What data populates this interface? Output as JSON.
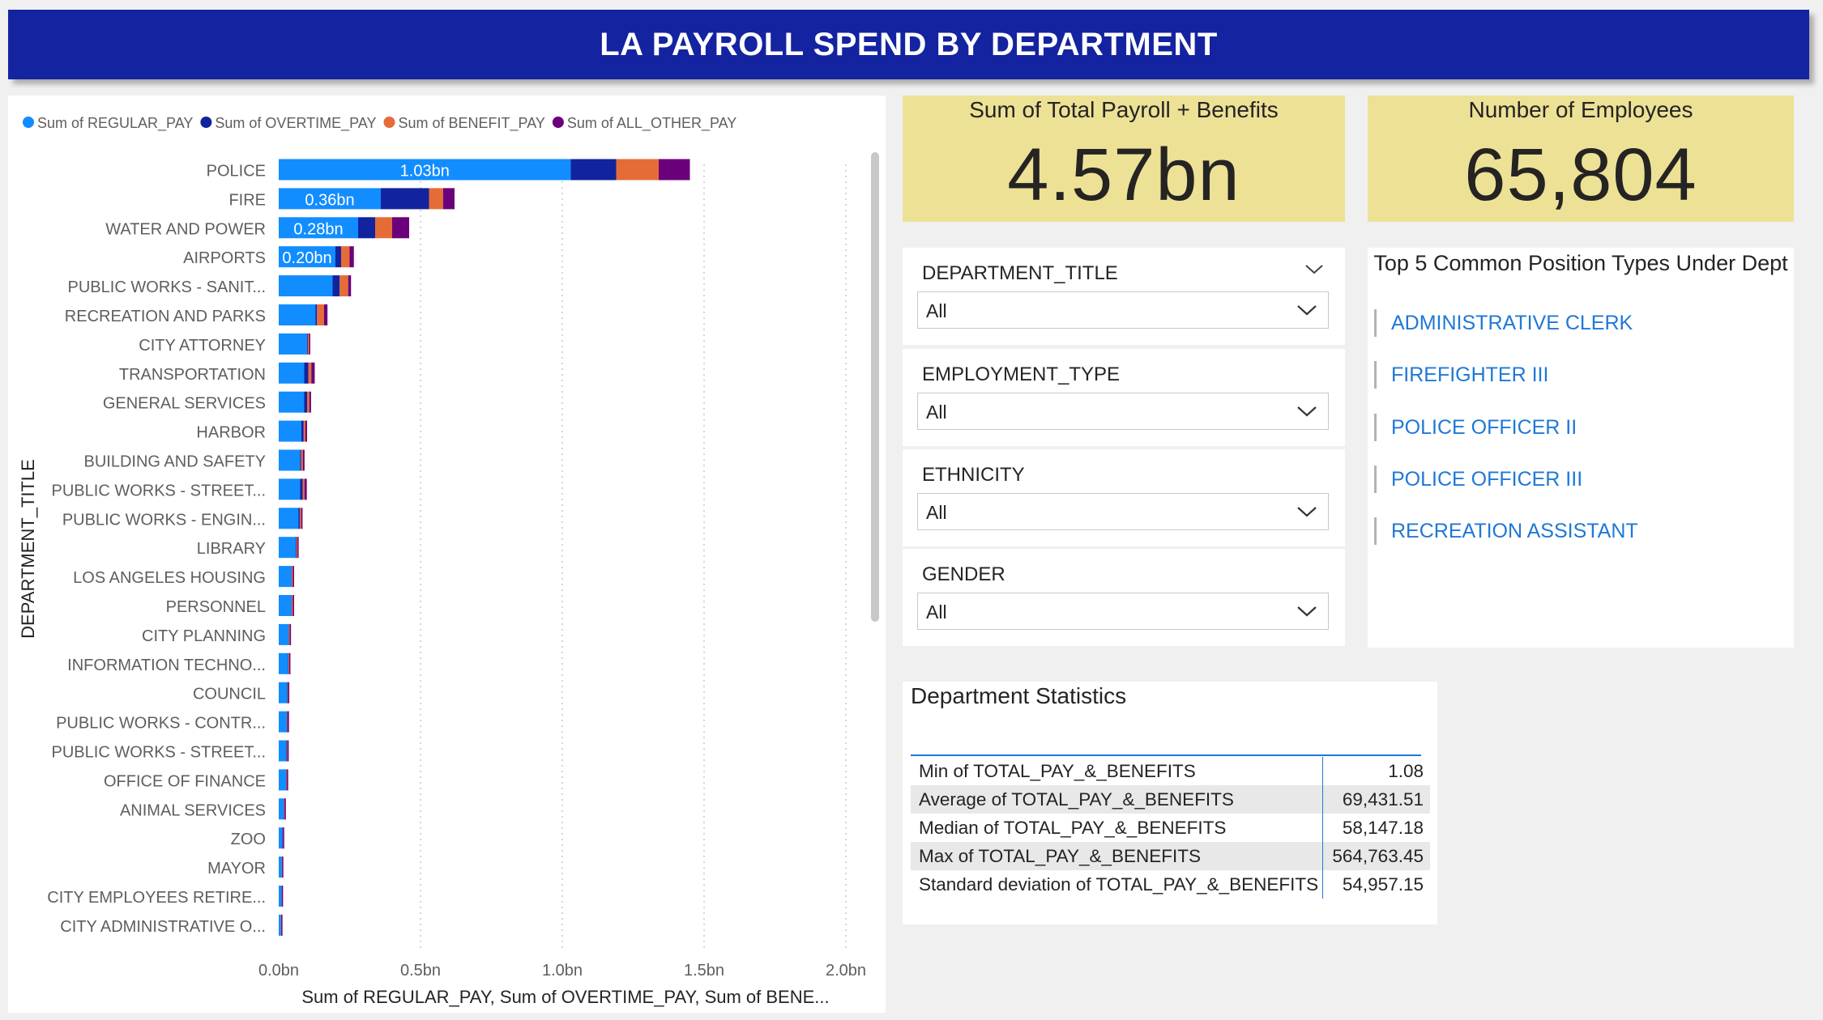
{
  "header": {
    "title": "LA PAYROLL SPEND BY DEPARTMENT"
  },
  "chart_data": {
    "type": "bar",
    "orientation": "horizontal",
    "stacked": true,
    "title": "",
    "xlabel": "Sum of REGULAR_PAY, Sum of OVERTIME_PAY, Sum of BENE...",
    "ylabel": "DEPARTMENT_TITLE",
    "xlim": [
      0,
      2.0
    ],
    "xticks": [
      0,
      0.5,
      1.0,
      1.5,
      2.0
    ],
    "xtick_labels": [
      "0.0bn",
      "0.5bn",
      "1.0bn",
      "1.5bn",
      "2.0bn"
    ],
    "grid": true,
    "legend_position": "top-left",
    "categories": [
      "POLICE",
      "FIRE",
      "WATER AND POWER",
      "AIRPORTS",
      "PUBLIC WORKS - SANIT...",
      "RECREATION AND PARKS",
      "CITY ATTORNEY",
      "TRANSPORTATION",
      "GENERAL SERVICES",
      "HARBOR",
      "BUILDING AND SAFETY",
      "PUBLIC WORKS - STREET...",
      "PUBLIC WORKS - ENGIN...",
      "LIBRARY",
      "LOS ANGELES HOUSING",
      "PERSONNEL",
      "CITY PLANNING",
      "INFORMATION TECHNO...",
      "COUNCIL",
      "PUBLIC WORKS - CONTR...",
      "PUBLIC WORKS - STREET...",
      "OFFICE OF FINANCE",
      "ANIMAL SERVICES",
      "ZOO",
      "MAYOR",
      "CITY EMPLOYEES RETIRE...",
      "CITY ADMINISTRATIVE O..."
    ],
    "series": [
      {
        "name": "Sum of REGULAR_PAY",
        "color": "#118dff",
        "values": [
          1.03,
          0.36,
          0.28,
          0.2,
          0.19,
          0.13,
          0.1,
          0.09,
          0.09,
          0.08,
          0.075,
          0.075,
          0.07,
          0.06,
          0.045,
          0.045,
          0.035,
          0.033,
          0.03,
          0.028,
          0.027,
          0.026,
          0.018,
          0.013,
          0.011,
          0.01,
          0.008
        ],
        "labels": [
          "1.03bn",
          "0.36bn",
          "0.28bn",
          "0.20bn"
        ]
      },
      {
        "name": "Sum of OVERTIME_PAY",
        "color": "#12239e",
        "values": [
          0.16,
          0.17,
          0.06,
          0.02,
          0.025,
          0.005,
          0.002,
          0.015,
          0.01,
          0.008,
          0.004,
          0.01,
          0.004,
          0.002,
          0.001,
          0.001,
          0.001,
          0.001,
          0.001,
          0.002,
          0.002,
          0.001,
          0.001,
          0.001,
          0.0,
          0.0,
          0.0
        ]
      },
      {
        "name": "Sum of BENEFIT_PAY",
        "color": "#e66c37",
        "values": [
          0.15,
          0.05,
          0.06,
          0.03,
          0.03,
          0.025,
          0.005,
          0.01,
          0.008,
          0.006,
          0.006,
          0.006,
          0.005,
          0.004,
          0.004,
          0.004,
          0.003,
          0.003,
          0.002,
          0.002,
          0.002,
          0.002,
          0.002,
          0.001,
          0.001,
          0.001,
          0.001
        ]
      },
      {
        "name": "Sum of ALL_OTHER_PAY",
        "color": "#6b007b",
        "values": [
          0.11,
          0.04,
          0.06,
          0.015,
          0.01,
          0.012,
          0.004,
          0.012,
          0.006,
          0.006,
          0.006,
          0.008,
          0.005,
          0.003,
          0.002,
          0.002,
          0.002,
          0.002,
          0.002,
          0.002,
          0.002,
          0.002,
          0.001,
          0.001,
          0.001,
          0.001,
          0.001
        ]
      }
    ]
  },
  "cards": {
    "total_payroll": {
      "label": "Sum of Total Payroll + Benefits",
      "value": "4.57bn"
    },
    "employees": {
      "label": "Number of Employees",
      "value": "65,804"
    }
  },
  "slicers": [
    {
      "title": "DEPARTMENT_TITLE",
      "value": "All"
    },
    {
      "title": "EMPLOYMENT_TYPE",
      "value": "All"
    },
    {
      "title": "ETHNICITY",
      "value": "All"
    },
    {
      "title": "GENDER",
      "value": "All"
    }
  ],
  "top_positions": {
    "title": "Top 5 Common Position Types Under Dept",
    "items": [
      "ADMINISTRATIVE CLERK",
      "FIREFIGHTER III",
      "POLICE OFFICER II",
      "POLICE OFFICER III",
      "RECREATION ASSISTANT"
    ]
  },
  "dept_stats": {
    "title": "Department Statistics",
    "rows": [
      {
        "label": "Min of TOTAL_PAY_&_BENEFITS",
        "value": "1.08"
      },
      {
        "label": "Average of TOTAL_PAY_&_BENEFITS",
        "value": "69,431.51"
      },
      {
        "label": "Median of TOTAL_PAY_&_BENEFITS",
        "value": "58,147.18"
      },
      {
        "label": "Max of TOTAL_PAY_&_BENEFITS",
        "value": "564,763.45"
      },
      {
        "label": "Standard deviation of TOTAL_PAY_&_BENEFITS",
        "value": "54,957.15"
      }
    ]
  },
  "colors": {
    "title_bar": "#1423a0",
    "card_bg": "#ede196",
    "link": "#1f78d6"
  }
}
